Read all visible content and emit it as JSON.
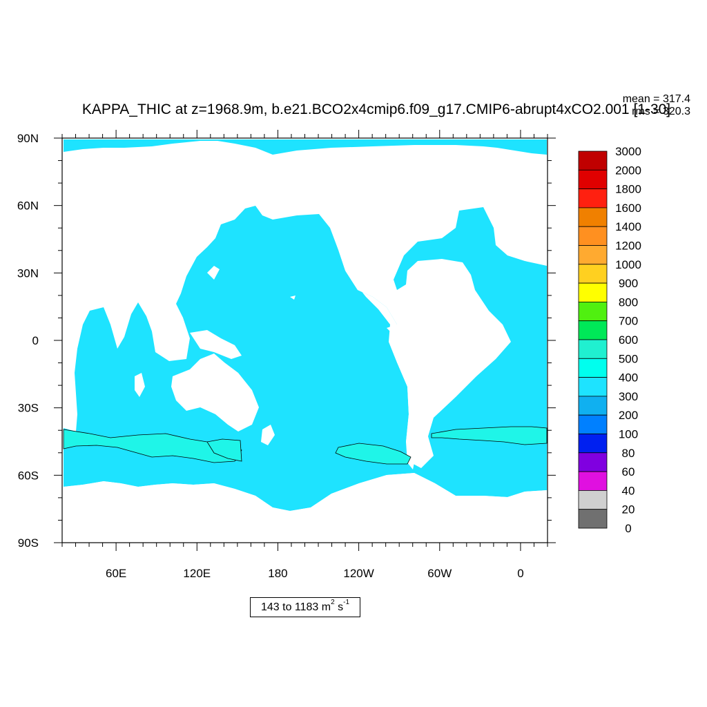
{
  "figure": {
    "title": "KAPPA_THIC at z=1968.9m, b.e21.BCO2x4cmip6.f09_g17.CMIP6-abrupt4xCO2.001 [1-30]",
    "mean_label": "mean = 317.4",
    "rms_label": "rms = 320.3",
    "range_label": {
      "prefix": "143 to 1183 m",
      "exp1": "2",
      "middle": " s",
      "exp2": "-1"
    }
  },
  "map": {
    "projection": "cylindrical-equidistant",
    "lon_center": 200,
    "lat_range": [
      -90,
      90
    ],
    "lon_ticks": [
      {
        "lon": 60,
        "label": "60E"
      },
      {
        "lon": 120,
        "label": "120E"
      },
      {
        "lon": 180,
        "label": "180"
      },
      {
        "lon": 240,
        "label": "120W"
      },
      {
        "lon": 300,
        "label": "60W"
      },
      {
        "lon": 360,
        "label": "0"
      }
    ],
    "lat_ticks": [
      {
        "lat": 90,
        "label": "90N"
      },
      {
        "lat": 60,
        "label": "60N"
      },
      {
        "lat": 30,
        "label": "30N"
      },
      {
        "lat": 0,
        "label": "0"
      },
      {
        "lat": -30,
        "label": "30S"
      },
      {
        "lat": -60,
        "label": "60S"
      },
      {
        "lat": -90,
        "label": "90S"
      }
    ],
    "dominant_fill": "#1ee3ff",
    "land_fill": "#ffffff",
    "enhanced_zone_fill": "#1ff5e8",
    "contour_color": "#000000"
  },
  "colorbar": {
    "labels": [
      "3000",
      "2000",
      "1800",
      "1600",
      "1400",
      "1200",
      "1000",
      "900",
      "800",
      "700",
      "600",
      "500",
      "400",
      "300",
      "200",
      "100",
      "80",
      "60",
      "40",
      "20",
      "0"
    ],
    "colors": [
      "#c00000",
      "#e00000",
      "#ff2010",
      "#f08000",
      "#ff9020",
      "#ffaa30",
      "#ffd020",
      "#ffff00",
      "#50f010",
      "#00e858",
      "#20f0d0",
      "#00ffee",
      "#1ee3ff",
      "#10b0f0",
      "#0080ff",
      "#0020f0",
      "#8000e0",
      "#e010e0",
      "#d0d0d0",
      "#707070"
    ]
  }
}
